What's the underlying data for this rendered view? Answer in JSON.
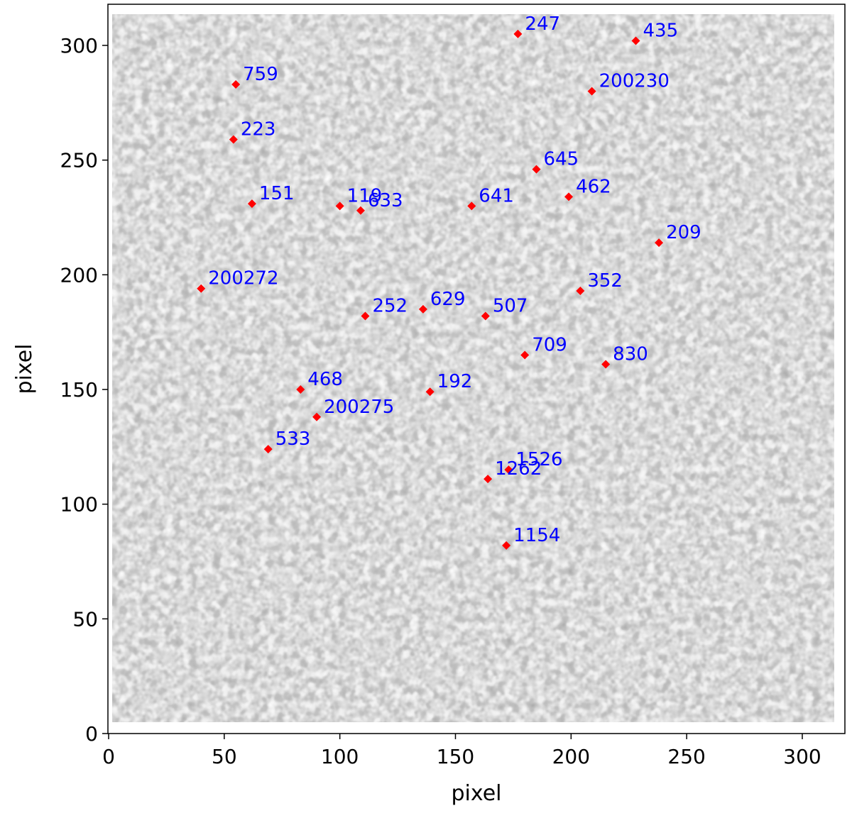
{
  "chart_data": {
    "type": "scatter",
    "title": "",
    "xlabel": "pixel",
    "ylabel": "pixel",
    "xlim": [
      0,
      315
    ],
    "ylim": [
      0,
      315
    ],
    "xticks": [
      0,
      50,
      100,
      150,
      200,
      250,
      300
    ],
    "yticks": [
      0,
      50,
      100,
      150,
      200,
      250,
      300
    ],
    "background": "grayscale star-field image",
    "marker": "diamond",
    "marker_color": "#ff0000",
    "label_color": "#0000ff",
    "grid": false,
    "points": [
      {
        "label": "247",
        "x": 177,
        "y": 305
      },
      {
        "label": "435",
        "x": 228,
        "y": 302
      },
      {
        "label": "759",
        "x": 55,
        "y": 283
      },
      {
        "label": "200230",
        "x": 209,
        "y": 280
      },
      {
        "label": "223",
        "x": 54,
        "y": 259
      },
      {
        "label": "645",
        "x": 185,
        "y": 246
      },
      {
        "label": "462",
        "x": 199,
        "y": 234
      },
      {
        "label": "151",
        "x": 62,
        "y": 231
      },
      {
        "label": "119",
        "x": 100,
        "y": 230
      },
      {
        "label": "633",
        "x": 109,
        "y": 228
      },
      {
        "label": "641",
        "x": 157,
        "y": 230
      },
      {
        "label": "209",
        "x": 238,
        "y": 214
      },
      {
        "label": "200272",
        "x": 40,
        "y": 194
      },
      {
        "label": "352",
        "x": 204,
        "y": 193
      },
      {
        "label": "252",
        "x": 111,
        "y": 182
      },
      {
        "label": "629",
        "x": 136,
        "y": 185
      },
      {
        "label": "507",
        "x": 163,
        "y": 182
      },
      {
        "label": "709",
        "x": 180,
        "y": 165
      },
      {
        "label": "830",
        "x": 215,
        "y": 161
      },
      {
        "label": "468",
        "x": 83,
        "y": 150
      },
      {
        "label": "192",
        "x": 139,
        "y": 149
      },
      {
        "label": "200275",
        "x": 90,
        "y": 138
      },
      {
        "label": "533",
        "x": 69,
        "y": 124
      },
      {
        "label": "1526",
        "x": 173,
        "y": 115
      },
      {
        "label": "1262",
        "x": 164,
        "y": 111
      },
      {
        "label": "1154",
        "x": 172,
        "y": 82
      }
    ]
  }
}
